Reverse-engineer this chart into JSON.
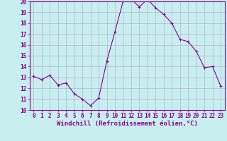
{
  "x": [
    0,
    1,
    2,
    3,
    4,
    5,
    6,
    7,
    8,
    9,
    10,
    11,
    12,
    13,
    14,
    15,
    16,
    17,
    18,
    19,
    20,
    21,
    22,
    23
  ],
  "y": [
    13.1,
    12.8,
    13.2,
    12.3,
    12.5,
    11.5,
    11.0,
    10.4,
    11.1,
    14.5,
    17.2,
    20.0,
    20.2,
    19.5,
    20.2,
    19.4,
    18.8,
    18.0,
    16.5,
    16.3,
    15.4,
    13.9,
    14.0,
    12.2
  ],
  "line_color": "#880088",
  "marker": "+",
  "marker_size": 3.5,
  "line_width": 0.8,
  "bg_color": "#c8eef0",
  "grid_color": "#aaaacc",
  "xlabel": "Windchill (Refroidissement éolien,°C)",
  "xlabel_color": "#880088",
  "ylim": [
    10,
    20
  ],
  "xlim_min": -0.5,
  "xlim_max": 23.5,
  "yticks": [
    10,
    11,
    12,
    13,
    14,
    15,
    16,
    17,
    18,
    19,
    20
  ],
  "xticks": [
    0,
    1,
    2,
    3,
    4,
    5,
    6,
    7,
    8,
    9,
    10,
    11,
    12,
    13,
    14,
    15,
    16,
    17,
    18,
    19,
    20,
    21,
    22,
    23
  ],
  "tick_label_fontsize": 5.5,
  "xlabel_fontsize": 6.5,
  "axis_color": "#880088",
  "tick_font": "monospace"
}
